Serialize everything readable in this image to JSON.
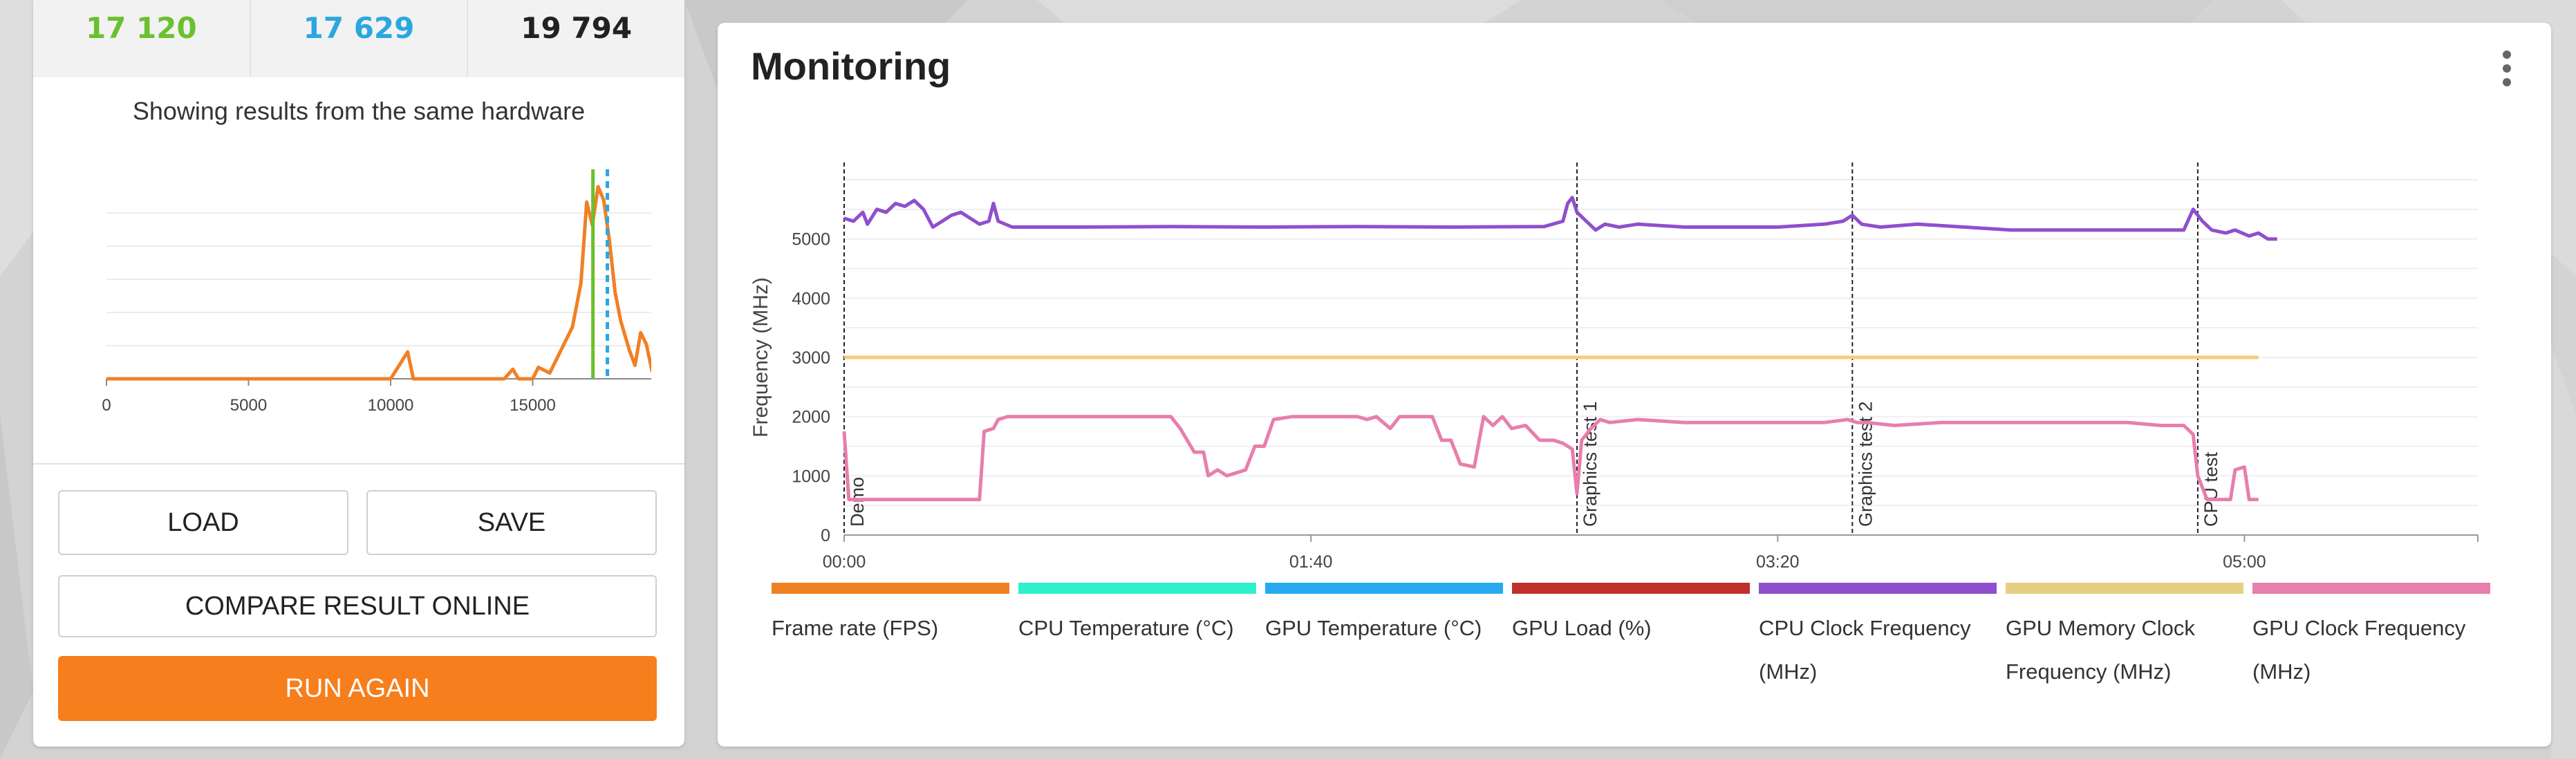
{
  "scores": [
    {
      "value": "17 120",
      "color": "#6cbf2e"
    },
    {
      "value": "17 629",
      "color": "#2aa7e0"
    },
    {
      "value": "19 794",
      "color": "#222222"
    }
  ],
  "hardware_caption": "Showing results from the same hardware",
  "distribution_chart": {
    "x_ticks": [
      "0",
      "5000",
      "10000",
      "15000"
    ],
    "x_tick_values": [
      0,
      5000,
      10000,
      15000
    ],
    "x_range": [
      0,
      20000
    ],
    "y_range": [
      0,
      1
    ],
    "curve": [
      [
        0,
        0
      ],
      [
        10000,
        0
      ],
      [
        10300,
        0.07
      ],
      [
        10600,
        0.14
      ],
      [
        10800,
        0
      ],
      [
        14000,
        0
      ],
      [
        14300,
        0.05
      ],
      [
        14500,
        0
      ],
      [
        15000,
        0
      ],
      [
        15200,
        0.06
      ],
      [
        15600,
        0.03
      ],
      [
        16000,
        0.15
      ],
      [
        16400,
        0.27
      ],
      [
        16700,
        0.5
      ],
      [
        16900,
        0.92
      ],
      [
        17100,
        0.8
      ],
      [
        17300,
        1.0
      ],
      [
        17500,
        0.93
      ],
      [
        17700,
        0.72
      ],
      [
        17900,
        0.45
      ],
      [
        18100,
        0.3
      ],
      [
        18400,
        0.15
      ],
      [
        18600,
        0.07
      ],
      [
        18800,
        0.24
      ],
      [
        19000,
        0.18
      ],
      [
        19200,
        0.04
      ],
      [
        19400,
        0.04
      ]
    ],
    "marker_solid": 17120,
    "marker_dashed": 17629,
    "colors": {
      "curve": "#f08024",
      "solid": "#6cbf2e",
      "dashed": "#2aa7e0"
    }
  },
  "buttons": {
    "load": "LOAD",
    "save": "SAVE",
    "compare": "COMPARE RESULT ONLINE",
    "run_again": "RUN AGAIN"
  },
  "monitoring": {
    "title": "Monitoring",
    "y_label": "Frequency (MHz)",
    "y_ticks": [
      "0",
      "1000",
      "2000",
      "3000",
      "4000",
      "5000"
    ],
    "y_tick_values": [
      0,
      1000,
      2000,
      3000,
      4000,
      5000
    ],
    "x_ticks": [
      "00:00",
      "01:40",
      "03:20",
      "05:00"
    ],
    "x_tick_values": [
      0,
      100,
      200,
      300
    ],
    "x_range": [
      0,
      350
    ],
    "y_range": [
      0,
      6000
    ],
    "markers": [
      {
        "label": "Demo",
        "t": 0
      },
      {
        "label": "Graphics test 1",
        "t": 157
      },
      {
        "label": "Graphics test 2",
        "t": 216
      },
      {
        "label": "CPU test",
        "t": 290
      }
    ]
  },
  "chart_data": {
    "type": "line",
    "title": "Monitoring",
    "xlabel": "",
    "ylabel": "Frequency (MHz)",
    "ylim": [
      0,
      6000
    ],
    "series": [
      {
        "name": "CPU Clock Frequency (MHz)",
        "color": "#8f4fcd",
        "points": [
          [
            0,
            5350
          ],
          [
            2,
            5300
          ],
          [
            4,
            5450
          ],
          [
            5,
            5250
          ],
          [
            7,
            5500
          ],
          [
            9,
            5450
          ],
          [
            11,
            5600
          ],
          [
            13,
            5550
          ],
          [
            15,
            5650
          ],
          [
            17,
            5500
          ],
          [
            19,
            5200
          ],
          [
            21,
            5300
          ],
          [
            23,
            5400
          ],
          [
            25,
            5450
          ],
          [
            27,
            5350
          ],
          [
            29,
            5250
          ],
          [
            31,
            5300
          ],
          [
            32,
            5600
          ],
          [
            33,
            5300
          ],
          [
            36,
            5200
          ],
          [
            50,
            5200
          ],
          [
            70,
            5210
          ],
          [
            90,
            5200
          ],
          [
            110,
            5210
          ],
          [
            130,
            5200
          ],
          [
            150,
            5210
          ],
          [
            154,
            5300
          ],
          [
            155,
            5600
          ],
          [
            156,
            5700
          ],
          [
            157,
            5450
          ],
          [
            159,
            5300
          ],
          [
            161,
            5150
          ],
          [
            163,
            5250
          ],
          [
            166,
            5200
          ],
          [
            170,
            5250
          ],
          [
            180,
            5200
          ],
          [
            190,
            5200
          ],
          [
            200,
            5200
          ],
          [
            210,
            5250
          ],
          [
            214,
            5300
          ],
          [
            216,
            5400
          ],
          [
            218,
            5250
          ],
          [
            222,
            5200
          ],
          [
            230,
            5250
          ],
          [
            240,
            5200
          ],
          [
            250,
            5150
          ],
          [
            260,
            5150
          ],
          [
            270,
            5150
          ],
          [
            280,
            5150
          ],
          [
            287,
            5150
          ],
          [
            289,
            5500
          ],
          [
            291,
            5300
          ],
          [
            293,
            5150
          ],
          [
            296,
            5100
          ],
          [
            298,
            5150
          ],
          [
            301,
            5050
          ],
          [
            303,
            5100
          ],
          [
            305,
            5000
          ],
          [
            307,
            5000
          ]
        ]
      },
      {
        "name": "GPU Memory Clock Frequency (MHz)",
        "color": "#f8ca80",
        "points": [
          [
            0,
            3000
          ],
          [
            303,
            3000
          ]
        ]
      },
      {
        "name": "GPU Clock Frequency (MHz)",
        "color": "#e87eab",
        "points": [
          [
            0,
            1750
          ],
          [
            1,
            600
          ],
          [
            29,
            600
          ],
          [
            30,
            1750
          ],
          [
            32,
            1800
          ],
          [
            33,
            1950
          ],
          [
            35,
            2000
          ],
          [
            60,
            2000
          ],
          [
            70,
            2000
          ],
          [
            72,
            1800
          ],
          [
            75,
            1400
          ],
          [
            77,
            1400
          ],
          [
            78,
            1000
          ],
          [
            80,
            1100
          ],
          [
            82,
            1000
          ],
          [
            86,
            1100
          ],
          [
            88,
            1500
          ],
          [
            90,
            1500
          ],
          [
            92,
            1950
          ],
          [
            96,
            2000
          ],
          [
            110,
            2000
          ],
          [
            112,
            1950
          ],
          [
            114,
            2000
          ],
          [
            117,
            1800
          ],
          [
            119,
            2000
          ],
          [
            126,
            2000
          ],
          [
            128,
            1600
          ],
          [
            130,
            1600
          ],
          [
            132,
            1200
          ],
          [
            135,
            1150
          ],
          [
            137,
            2000
          ],
          [
            139,
            1850
          ],
          [
            141,
            2000
          ],
          [
            143,
            1800
          ],
          [
            146,
            1850
          ],
          [
            149,
            1600
          ],
          [
            152,
            1600
          ],
          [
            154,
            1550
          ],
          [
            156,
            1450
          ],
          [
            157,
            700
          ],
          [
            158,
            1600
          ],
          [
            160,
            1800
          ],
          [
            162,
            1950
          ],
          [
            164,
            1900
          ],
          [
            170,
            1950
          ],
          [
            180,
            1900
          ],
          [
            190,
            1900
          ],
          [
            200,
            1900
          ],
          [
            210,
            1900
          ],
          [
            215,
            1950
          ],
          [
            217,
            1900
          ],
          [
            219,
            1900
          ],
          [
            225,
            1850
          ],
          [
            235,
            1900
          ],
          [
            245,
            1900
          ],
          [
            255,
            1900
          ],
          [
            265,
            1900
          ],
          [
            275,
            1900
          ],
          [
            282,
            1850
          ],
          [
            287,
            1850
          ],
          [
            289,
            1700
          ],
          [
            290,
            1000
          ],
          [
            292,
            600
          ],
          [
            297,
            600
          ],
          [
            298,
            1100
          ],
          [
            300,
            1150
          ],
          [
            301,
            600
          ],
          [
            303,
            600
          ]
        ]
      }
    ],
    "legend": [
      {
        "label": "Frame rate (FPS)",
        "color": "#f08024"
      },
      {
        "label": "CPU Temperature (°C)",
        "color": "#2ef0cc"
      },
      {
        "label": "GPU Temperature (°C)",
        "color": "#28aaf0"
      },
      {
        "label": "GPU Load (%)",
        "color": "#c0302b"
      },
      {
        "label": "CPU Clock Frequency (MHz)",
        "color": "#8f4fcd"
      },
      {
        "label": "GPU Memory Clock Frequency (MHz)",
        "color": "#e6cf80"
      },
      {
        "label": "GPU Clock Frequency (MHz)",
        "color": "#e87eab"
      }
    ]
  }
}
